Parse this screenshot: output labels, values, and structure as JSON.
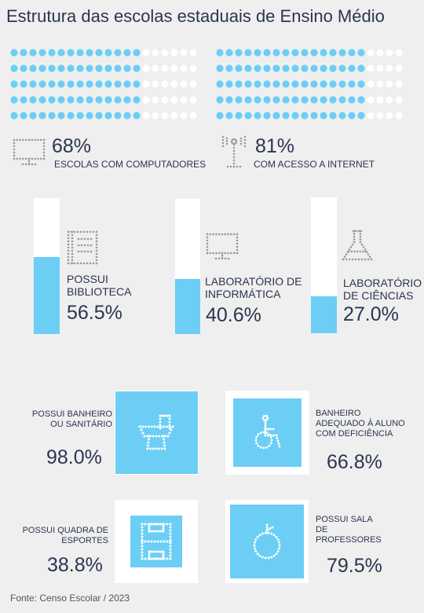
{
  "title": "Estrutura das escolas estaduais de Ensino Médio",
  "computers": {
    "value": "68%",
    "label": "ESCOLAS COM COMPUTADORES",
    "fraction": 0.68,
    "icon": "monitor-icon"
  },
  "internet": {
    "value": "81%",
    "label": "COM ACESSO A INTERNET",
    "fraction": 0.81,
    "icon": "antenna-icon"
  },
  "bars": [
    {
      "label": "POSSUI BIBLIOTECA",
      "value": "56.5%",
      "fraction": 0.565,
      "icon": "book-icon"
    },
    {
      "label": "LABORATÓRIO DE INFORMÁTICA",
      "value": "40.6%",
      "fraction": 0.406,
      "icon": "monitor-icon"
    },
    {
      "label": "LABORATÓRIO DE CIÊNCIAS",
      "value": "27.0%",
      "fraction": 0.27,
      "icon": "flask-icon"
    }
  ],
  "boxes": [
    {
      "label": "POSSUI BANHEIRO OU SANITÁRIO",
      "value": "98.0%",
      "fraction": 0.98,
      "icon": "toilet-icon"
    },
    {
      "label": "BANHEIRO ADEQUADO À ALUNO COM DEFICIÊNCIA",
      "value": "66.8%",
      "fraction": 0.668,
      "icon": "wheelchair-icon"
    },
    {
      "label": "POSSUI QUADRA DE ESPORTES",
      "value": "38.8%",
      "fraction": 0.388,
      "icon": "court-icon"
    },
    {
      "label": "POSSUI SALA DE PROFESSORES",
      "value": "79.5%",
      "fraction": 0.795,
      "icon": "apple-icon"
    }
  ],
  "colors": {
    "accent": "#6ccef5",
    "text": "#2b3550",
    "background": "#efefef"
  },
  "footer": "Fonte: Censo Escolar / 2023"
}
